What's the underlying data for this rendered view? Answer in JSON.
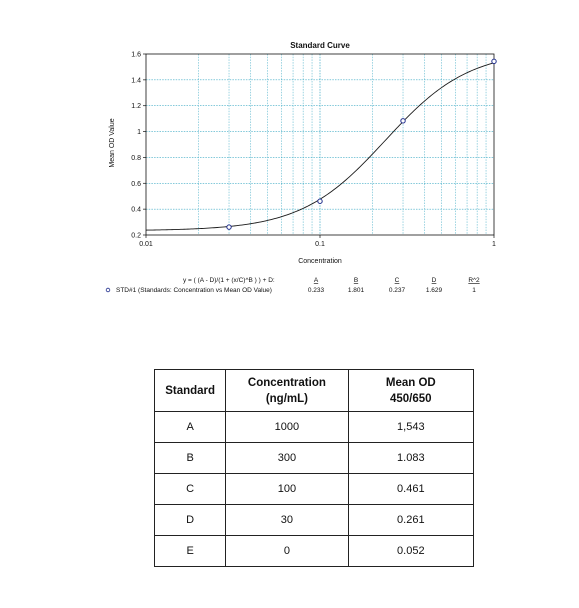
{
  "chart_data": {
    "type": "scatter",
    "title": "Standard Curve",
    "xlabel": "Concentration",
    "ylabel": "Mean OD Value",
    "x_scale": "log",
    "xlim": [
      0.01,
      1
    ],
    "ylim": [
      0.2,
      1.6
    ],
    "grid": true,
    "x_ticks": [
      "0.01",
      "0.1",
      "1"
    ],
    "y_ticks": [
      "0.2",
      "0.4",
      "0.6",
      "0.8",
      "1",
      "1.2",
      "1.4",
      "1.6"
    ],
    "points": [
      {
        "x": 0.03,
        "y": 0.261
      },
      {
        "x": 0.1,
        "y": 0.461
      },
      {
        "x": 0.3,
        "y": 1.083
      },
      {
        "x": 1,
        "y": 1.543
      }
    ],
    "fit": {
      "A": 0.233,
      "B": 1.801,
      "C": 0.237,
      "D": 1.629
    },
    "colors": {
      "point": "#1f2d8c",
      "curve": "#1a1a1a",
      "grid": "#3aa9c4",
      "axis": "#111111"
    }
  },
  "fit_legend": {
    "equation": "y = ( (A - D)/(1 + (x/C)^B ) ) + D:",
    "headers": [
      "A",
      "B",
      "C",
      "D",
      "R^2"
    ],
    "series_label": "STD#1 (Standards: Concentration vs Mean OD Value)",
    "values": [
      "0.233",
      "1.801",
      "0.237",
      "1.629",
      "1"
    ]
  },
  "table": {
    "headers": [
      "Standard",
      "Concentration\n(ng/mL)",
      "Mean OD\n450/650"
    ],
    "rows": [
      [
        "A",
        "1000",
        "1,543"
      ],
      [
        "B",
        "300",
        "1.083"
      ],
      [
        "C",
        "100",
        "0.461"
      ],
      [
        "D",
        "30",
        "0.261"
      ],
      [
        "E",
        "0",
        "0.052"
      ]
    ]
  }
}
